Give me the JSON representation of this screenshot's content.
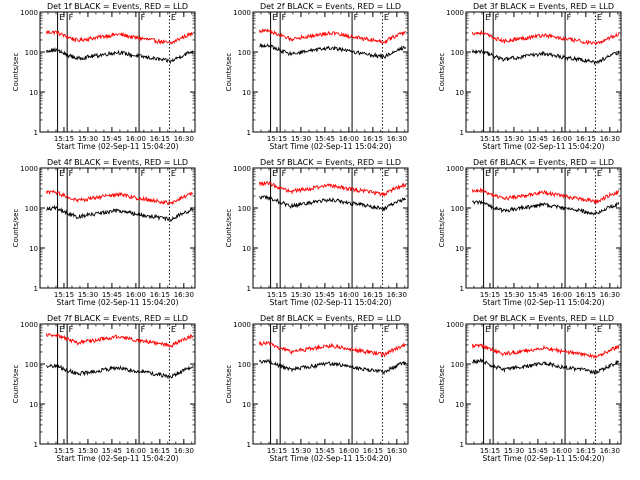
{
  "chart_data": [
    {
      "type": "line",
      "title": "Det 1f  BLACK = Events, RED = LLD",
      "events_level": 85,
      "lld_level": 240
    },
    {
      "type": "line",
      "title": "Det 2f  BLACK = Events, RED = LLD",
      "events_level": 110,
      "lld_level": 260
    },
    {
      "type": "line",
      "title": "Det 3f  BLACK = Events, RED = LLD",
      "events_level": 80,
      "lld_level": 230
    },
    {
      "type": "line",
      "title": "Det 4f  BLACK = Events, RED = LLD",
      "events_level": 75,
      "lld_level": 190
    },
    {
      "type": "line",
      "title": "Det 5f  BLACK = Events, RED = LLD",
      "events_level": 140,
      "lld_level": 320
    },
    {
      "type": "line",
      "title": "Det 6f  BLACK = Events, RED = LLD",
      "events_level": 105,
      "lld_level": 210
    },
    {
      "type": "line",
      "title": "Det 7f  BLACK = Events, RED = LLD",
      "events_level": 70,
      "lld_level": 420
    },
    {
      "type": "line",
      "title": "Det 8f  BLACK = Events, RED = LLD",
      "events_level": 90,
      "lld_level": 250
    },
    {
      "type": "line",
      "title": "Det 9f  BLACK = Events, RED = LLD",
      "events_level": 90,
      "lld_level": 220
    }
  ],
  "shared": {
    "ylabel": "Counts/sec",
    "xlabel": "Start Time (02-Sep-11 15:04:20)",
    "y_scale": "log",
    "ylim": [
      1,
      1000
    ],
    "y_ticks": [
      {
        "v": 1000,
        "label": "1000"
      },
      {
        "v": 100,
        "label": "100"
      },
      {
        "v": 10,
        "label": "10"
      },
      {
        "v": 1,
        "label": "1"
      }
    ],
    "xlim_min": [
      -4,
      93
    ],
    "x_ticks": [
      {
        "v": 11,
        "label": "15:15"
      },
      {
        "v": 26,
        "label": "15:30"
      },
      {
        "v": 41,
        "label": "15:45"
      },
      {
        "v": 56,
        "label": "16:00"
      },
      {
        "v": 71,
        "label": "16:15"
      },
      {
        "v": 86,
        "label": "16:30"
      }
    ],
    "markers": [
      {
        "label": "E",
        "x": 7,
        "style": "solid"
      },
      {
        "label": "F",
        "x": 13,
        "style": "solid"
      },
      {
        "label": "F",
        "x": 58,
        "style": "solid"
      },
      {
        "label": "E",
        "x": 77,
        "style": "dotted"
      }
    ],
    "colors": {
      "events": "#000000",
      "lld": "#ff0000",
      "axes": "#000000"
    }
  }
}
